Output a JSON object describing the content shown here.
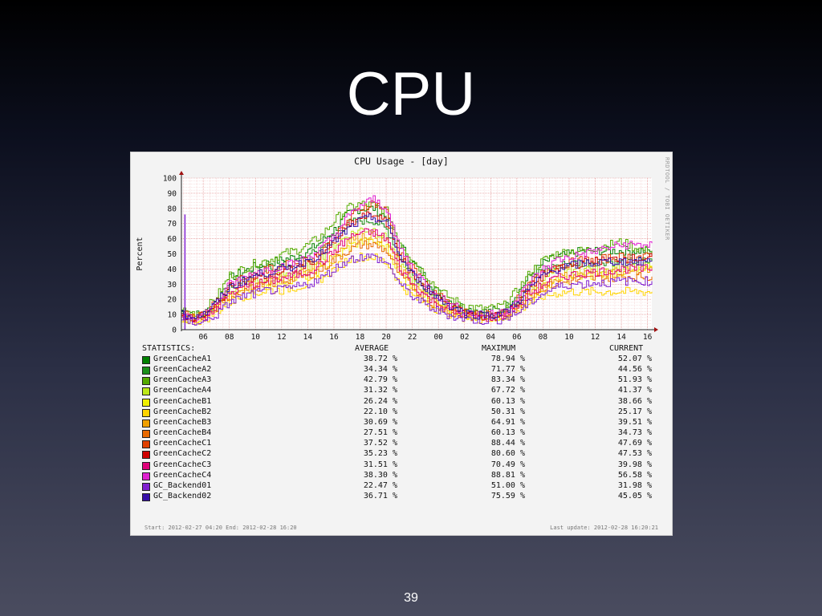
{
  "slide": {
    "title": "CPU",
    "page_number": "39"
  },
  "footer": {
    "start_text": "Start: 2012-02-27 04:20 End: 2012-02-28 16:20",
    "update_text": "Last update: 2012-02-28 16:20:21"
  },
  "watermark": "RRDTOOL / TOBI OETIKER",
  "stats_header": {
    "label": "STATISTICS:",
    "average": "AVERAGE",
    "maximum": "MAXIMUM",
    "current": "CURRENT"
  },
  "stats_rows": [
    {
      "name": "GreenCacheA1",
      "avg": "38.72 %",
      "max": "78.94 %",
      "cur": "52.07 %"
    },
    {
      "name": "GreenCacheA2",
      "avg": "34.34 %",
      "max": "71.77 %",
      "cur": "44.56 %"
    },
    {
      "name": "GreenCacheA3",
      "avg": "42.79 %",
      "max": "83.34 %",
      "cur": "51.93 %"
    },
    {
      "name": "GreenCacheA4",
      "avg": "31.32 %",
      "max": "67.72 %",
      "cur": "41.37 %"
    },
    {
      "name": "GreenCacheB1",
      "avg": "26.24 %",
      "max": "60.13 %",
      "cur": "38.66 %"
    },
    {
      "name": "GreenCacheB2",
      "avg": "22.10 %",
      "max": "50.31 %",
      "cur": "25.17 %"
    },
    {
      "name": "GreenCacheB3",
      "avg": "30.69 %",
      "max": "64.91 %",
      "cur": "39.51 %"
    },
    {
      "name": "GreenCacheB4",
      "avg": "27.51 %",
      "max": "60.13 %",
      "cur": "34.73 %"
    },
    {
      "name": "GreenCacheC1",
      "avg": "37.52 %",
      "max": "88.44 %",
      "cur": "47.69 %"
    },
    {
      "name": "GreenCacheC2",
      "avg": "35.23 %",
      "max": "80.60 %",
      "cur": "47.53 %"
    },
    {
      "name": "GreenCacheC3",
      "avg": "31.51 %",
      "max": "70.49 %",
      "cur": "39.98 %"
    },
    {
      "name": "GreenCacheC4",
      "avg": "38.30 %",
      "max": "88.81 %",
      "cur": "56.58 %"
    },
    {
      "name": "GC_Backend01",
      "avg": "22.47 %",
      "max": "51.00 %",
      "cur": "31.98 %"
    },
    {
      "name": "GC_Backend02",
      "avg": "36.71 %",
      "max": "75.59 %",
      "cur": "45.05 %"
    }
  ],
  "chart_data": {
    "type": "line",
    "title": "CPU Usage - [day]",
    "ylabel": "Percent",
    "xlabel": "",
    "ylim": [
      0,
      100
    ],
    "yticks": [
      0,
      10,
      20,
      30,
      40,
      50,
      60,
      70,
      80,
      90,
      100
    ],
    "xtick_labels": [
      "06",
      "08",
      "10",
      "12",
      "14",
      "16",
      "18",
      "20",
      "22",
      "00",
      "02",
      "04",
      "06",
      "08",
      "10",
      "12",
      "14",
      "16"
    ],
    "x_hours": [
      4.33,
      5,
      6,
      7,
      8,
      9,
      10,
      11,
      12,
      13,
      14,
      15,
      16,
      17,
      18,
      19,
      20,
      20.5,
      21,
      22,
      23,
      24,
      25,
      26,
      27,
      28,
      29,
      30,
      31,
      32,
      33,
      34,
      35,
      36,
      37,
      38,
      39,
      40,
      40.33
    ],
    "grid": true,
    "series": [
      {
        "name": "GreenCacheA1",
        "color": "#008000",
        "values": [
          12,
          10,
          10,
          20,
          34,
          38,
          42,
          44,
          46,
          48,
          52,
          58,
          66,
          76,
          80,
          80,
          74,
          64,
          56,
          44,
          34,
          24,
          18,
          14,
          12,
          12,
          14,
          24,
          36,
          44,
          48,
          50,
          52,
          52,
          52,
          52,
          52,
          52,
          52
        ]
      },
      {
        "name": "GreenCacheA2",
        "color": "#1a8f1a",
        "values": [
          11,
          9,
          10,
          18,
          30,
          34,
          38,
          40,
          42,
          44,
          48,
          54,
          62,
          70,
          72,
          72,
          66,
          58,
          48,
          36,
          28,
          20,
          15,
          12,
          10,
          10,
          12,
          20,
          32,
          40,
          42,
          44,
          44,
          45,
          45,
          44,
          45,
          45,
          45
        ]
      },
      {
        "name": "GreenCacheA3",
        "color": "#55aa00",
        "values": [
          13,
          11,
          12,
          22,
          36,
          40,
          44,
          46,
          50,
          52,
          56,
          62,
          72,
          80,
          83,
          82,
          78,
          68,
          58,
          46,
          36,
          26,
          20,
          16,
          14,
          14,
          16,
          26,
          38,
          46,
          50,
          52,
          52,
          54,
          56,
          58,
          54,
          52,
          52
        ]
      },
      {
        "name": "GreenCacheA4",
        "color": "#bde818",
        "values": [
          9,
          8,
          9,
          16,
          26,
          30,
          32,
          34,
          36,
          38,
          42,
          48,
          56,
          62,
          66,
          66,
          60,
          52,
          42,
          32,
          24,
          18,
          13,
          10,
          9,
          9,
          10,
          16,
          26,
          34,
          38,
          40,
          40,
          40,
          40,
          41,
          41,
          41,
          41
        ]
      },
      {
        "name": "GreenCacheB1",
        "color": "#f0f000",
        "values": [
          8,
          7,
          8,
          14,
          22,
          26,
          28,
          30,
          32,
          34,
          36,
          40,
          46,
          54,
          58,
          58,
          54,
          46,
          36,
          28,
          20,
          15,
          11,
          9,
          8,
          8,
          9,
          14,
          22,
          28,
          32,
          34,
          35,
          36,
          37,
          38,
          38,
          39,
          39
        ]
      },
      {
        "name": "GreenCacheB2",
        "color": "#ffd400",
        "values": [
          7,
          6,
          6,
          12,
          18,
          22,
          24,
          26,
          26,
          28,
          30,
          34,
          40,
          46,
          48,
          48,
          44,
          38,
          30,
          22,
          17,
          13,
          10,
          8,
          7,
          7,
          8,
          12,
          18,
          22,
          24,
          25,
          25,
          25,
          25,
          25,
          25,
          25,
          25
        ]
      },
      {
        "name": "GreenCacheB3",
        "color": "#f0a000",
        "values": [
          9,
          8,
          9,
          15,
          24,
          28,
          30,
          32,
          34,
          36,
          40,
          44,
          50,
          58,
          62,
          62,
          58,
          50,
          40,
          30,
          22,
          16,
          12,
          10,
          9,
          9,
          10,
          15,
          24,
          30,
          34,
          36,
          37,
          38,
          38,
          39,
          39,
          39,
          40
        ]
      },
      {
        "name": "GreenCacheB4",
        "color": "#e86a00",
        "values": [
          8,
          7,
          8,
          14,
          22,
          26,
          28,
          30,
          32,
          34,
          36,
          40,
          46,
          52,
          56,
          56,
          52,
          44,
          36,
          28,
          20,
          15,
          11,
          9,
          8,
          8,
          9,
          14,
          22,
          28,
          30,
          32,
          33,
          34,
          34,
          35,
          35,
          35,
          35
        ]
      },
      {
        "name": "GreenCacheC1",
        "color": "#e04000",
        "values": [
          10,
          9,
          10,
          18,
          30,
          34,
          36,
          40,
          42,
          44,
          46,
          52,
          60,
          72,
          80,
          84,
          78,
          64,
          52,
          40,
          30,
          22,
          16,
          12,
          10,
          10,
          12,
          20,
          30,
          38,
          42,
          44,
          46,
          46,
          47,
          48,
          48,
          48,
          48
        ]
      },
      {
        "name": "GreenCacheC2",
        "color": "#d00000",
        "values": [
          9,
          8,
          9,
          16,
          28,
          32,
          34,
          36,
          38,
          40,
          44,
          50,
          58,
          68,
          74,
          76,
          70,
          60,
          48,
          36,
          28,
          20,
          15,
          11,
          9,
          9,
          11,
          18,
          28,
          36,
          40,
          42,
          44,
          45,
          46,
          47,
          47,
          47,
          48
        ]
      },
      {
        "name": "GreenCacheC3",
        "color": "#e0007a",
        "values": [
          8,
          7,
          8,
          15,
          24,
          28,
          30,
          32,
          34,
          36,
          38,
          44,
          52,
          60,
          64,
          64,
          60,
          50,
          40,
          30,
          22,
          16,
          12,
          10,
          8,
          8,
          10,
          16,
          24,
          30,
          34,
          36,
          37,
          38,
          39,
          40,
          40,
          40,
          40
        ]
      },
      {
        "name": "GreenCacheC4",
        "color": "#e020d0",
        "values": [
          10,
          9,
          10,
          18,
          30,
          34,
          38,
          40,
          42,
          44,
          48,
          54,
          62,
          74,
          82,
          86,
          80,
          66,
          54,
          40,
          30,
          22,
          16,
          12,
          10,
          10,
          12,
          20,
          32,
          40,
          46,
          48,
          50,
          52,
          54,
          56,
          56,
          56,
          57
        ]
      },
      {
        "name": "GC_Backend01",
        "color": "#8020d0",
        "values": [
          6,
          5,
          5,
          10,
          18,
          22,
          24,
          26,
          26,
          28,
          30,
          34,
          40,
          46,
          48,
          48,
          44,
          38,
          30,
          22,
          16,
          12,
          9,
          7,
          6,
          6,
          7,
          11,
          18,
          24,
          28,
          30,
          30,
          31,
          31,
          32,
          32,
          32,
          32
        ]
      },
      {
        "name": "GC_Backend02",
        "color": "#3810a8",
        "values": [
          10,
          9,
          10,
          18,
          28,
          32,
          36,
          38,
          40,
          42,
          46,
          50,
          58,
          66,
          72,
          74,
          70,
          60,
          48,
          36,
          28,
          20,
          15,
          11,
          10,
          10,
          11,
          18,
          28,
          36,
          40,
          42,
          44,
          44,
          45,
          45,
          45,
          45,
          45
        ]
      }
    ]
  }
}
